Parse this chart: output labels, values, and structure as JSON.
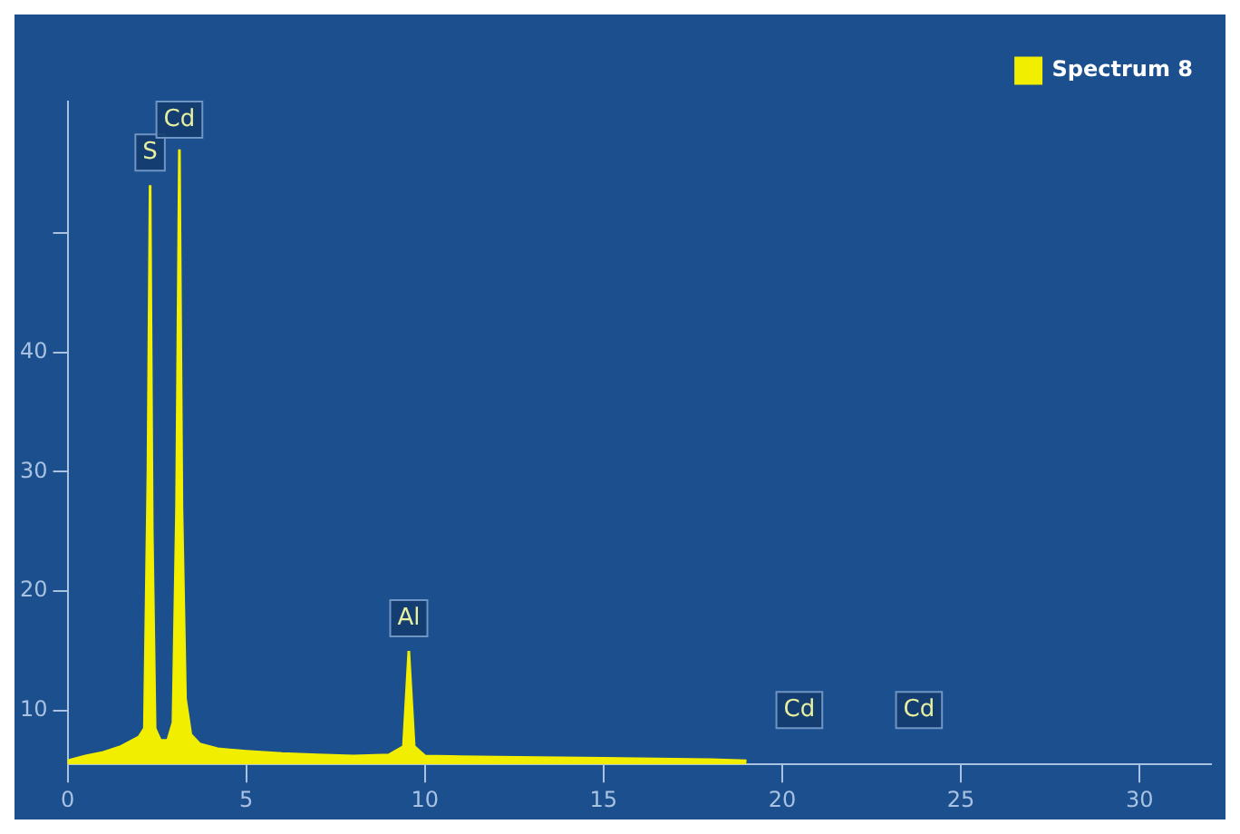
{
  "chart_data": {
    "type": "area",
    "x": [
      0,
      0.5,
      1.0,
      1.5,
      2.0,
      2.15,
      2.25,
      2.31,
      2.37,
      2.45,
      2.6,
      2.8,
      2.95,
      3.05,
      3.13,
      3.2,
      3.3,
      3.45,
      3.7,
      4.2,
      5,
      6,
      7,
      8,
      9,
      9.4,
      9.55,
      9.7,
      10,
      12,
      15,
      18,
      19
    ],
    "series": [
      {
        "name": "Spectrum 8",
        "color": "#f2ee00",
        "values": [
          5.8,
          6.2,
          6.5,
          7.0,
          7.8,
          8.5,
          30,
          54,
          25,
          8.5,
          7.5,
          7.5,
          9,
          27,
          57,
          27,
          11,
          8,
          7.2,
          6.8,
          6.6,
          6.4,
          6.3,
          6.2,
          6.3,
          7,
          15,
          7,
          6.2,
          6.1,
          6.0,
          5.9,
          5.8
        ]
      }
    ],
    "xlim": [
      0,
      32
    ],
    "xticks": [
      0,
      5,
      10,
      15,
      20,
      25,
      30
    ],
    "ylim": [
      5.5,
      61
    ],
    "yticks": [
      10,
      20,
      30,
      40,
      {
        "value": 50,
        "label": null
      }
    ],
    "annotations": [
      {
        "text": "S",
        "x": 2.31,
        "y": 54
      },
      {
        "text": "Cd",
        "x": 3.13,
        "y": 57
      },
      {
        "text": "Al",
        "x": 9.55,
        "y": 15
      },
      "Cd",
      "Cd"
    ],
    "grid": false,
    "legend": "top right"
  }
}
